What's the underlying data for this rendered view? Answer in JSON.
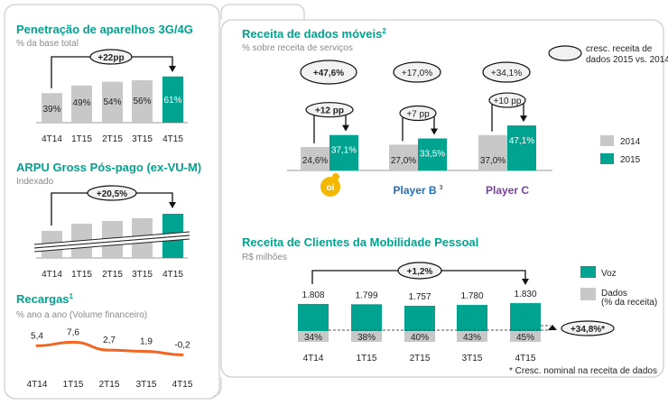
{
  "colors": {
    "teal": "#00a38f",
    "gray": "#c8c8c8",
    "orange": "#f26522",
    "oi_yellow": "#f5b800",
    "player_b": "#1f6fc2",
    "player_c": "#7a3fa0"
  },
  "chart_data": [
    {
      "type": "bar",
      "title": "Penetração de aparelhos 3G/4G",
      "subtitle": "% da base total",
      "categories": [
        "4T14",
        "1T15",
        "2T15",
        "3T15",
        "4T15"
      ],
      "values": [
        39,
        49,
        54,
        56,
        61
      ],
      "value_labels": [
        "39%",
        "49%",
        "54%",
        "56%",
        "61%"
      ],
      "highlight": "4T15",
      "annotation": "+22pp"
    },
    {
      "type": "bar",
      "title": "ARPU Gross Pós-pago (ex-VU-M)",
      "subtitle": "Indexado",
      "categories": [
        "4T14",
        "1T15",
        "2T15",
        "3T15",
        "4T15"
      ],
      "axis_break": true,
      "highlight": "4T15",
      "annotation": "+20,5%"
    },
    {
      "type": "line",
      "title": "Recargas",
      "title_sup": "1",
      "subtitle": "% ano a ano (Volume financeiro)",
      "categories": [
        "4T14",
        "1T15",
        "2T15",
        "3T15",
        "4T15"
      ],
      "values": [
        5.4,
        7.6,
        2.7,
        1.9,
        -0.2
      ],
      "value_labels": [
        "5,4",
        "7,6",
        "2,7",
        "1,9",
        "-0,2"
      ]
    },
    {
      "type": "bar",
      "title": "Receita de dados móveis",
      "title_sup": "2",
      "subtitle": "% sobre receita de serviços",
      "categories": [
        "oi",
        "Player B",
        "Player C"
      ],
      "category_sup": [
        "",
        "3",
        ""
      ],
      "series": [
        {
          "name": "2014",
          "values": [
            24.6,
            27.0,
            37.0
          ],
          "value_labels": [
            "24,6%",
            "27,0%",
            "37,0%"
          ]
        },
        {
          "name": "2015",
          "values": [
            37.1,
            33.5,
            47.1
          ],
          "value_labels": [
            "37,1%",
            "33,5%",
            "47,1%"
          ]
        }
      ],
      "pp_change": [
        "+12 pp",
        "+7 pp",
        "+10 pp"
      ],
      "growth": [
        "+47,6%",
        "+17,0%",
        "+34,1%"
      ],
      "growth_legend": "cresc. receita de dados 2015 vs. 2014",
      "legend_position": "right"
    },
    {
      "type": "bar",
      "title": "Receita de Clientes da Mobilidade Pessoal",
      "subtitle": "R$ milhões",
      "categories": [
        "4T14",
        "1T15",
        "2T15",
        "3T15",
        "4T15"
      ],
      "totals": [
        1808,
        1799,
        1757,
        1780,
        1830
      ],
      "total_labels": [
        "1.808",
        "1.799",
        "1.757",
        "1.780",
        "1.830"
      ],
      "data_share": [
        34,
        38,
        40,
        43,
        45
      ],
      "data_share_labels": [
        "34%",
        "38%",
        "40%",
        "43%",
        "45%"
      ],
      "series": [
        {
          "name": "Voz"
        },
        {
          "name": "Dados",
          "note": "(% da receita)"
        }
      ],
      "annotation": "+1,2%",
      "data_growth": "+34,8%*",
      "footnote": "* Cresc. nominal na receita de dados",
      "legend_position": "right"
    }
  ]
}
